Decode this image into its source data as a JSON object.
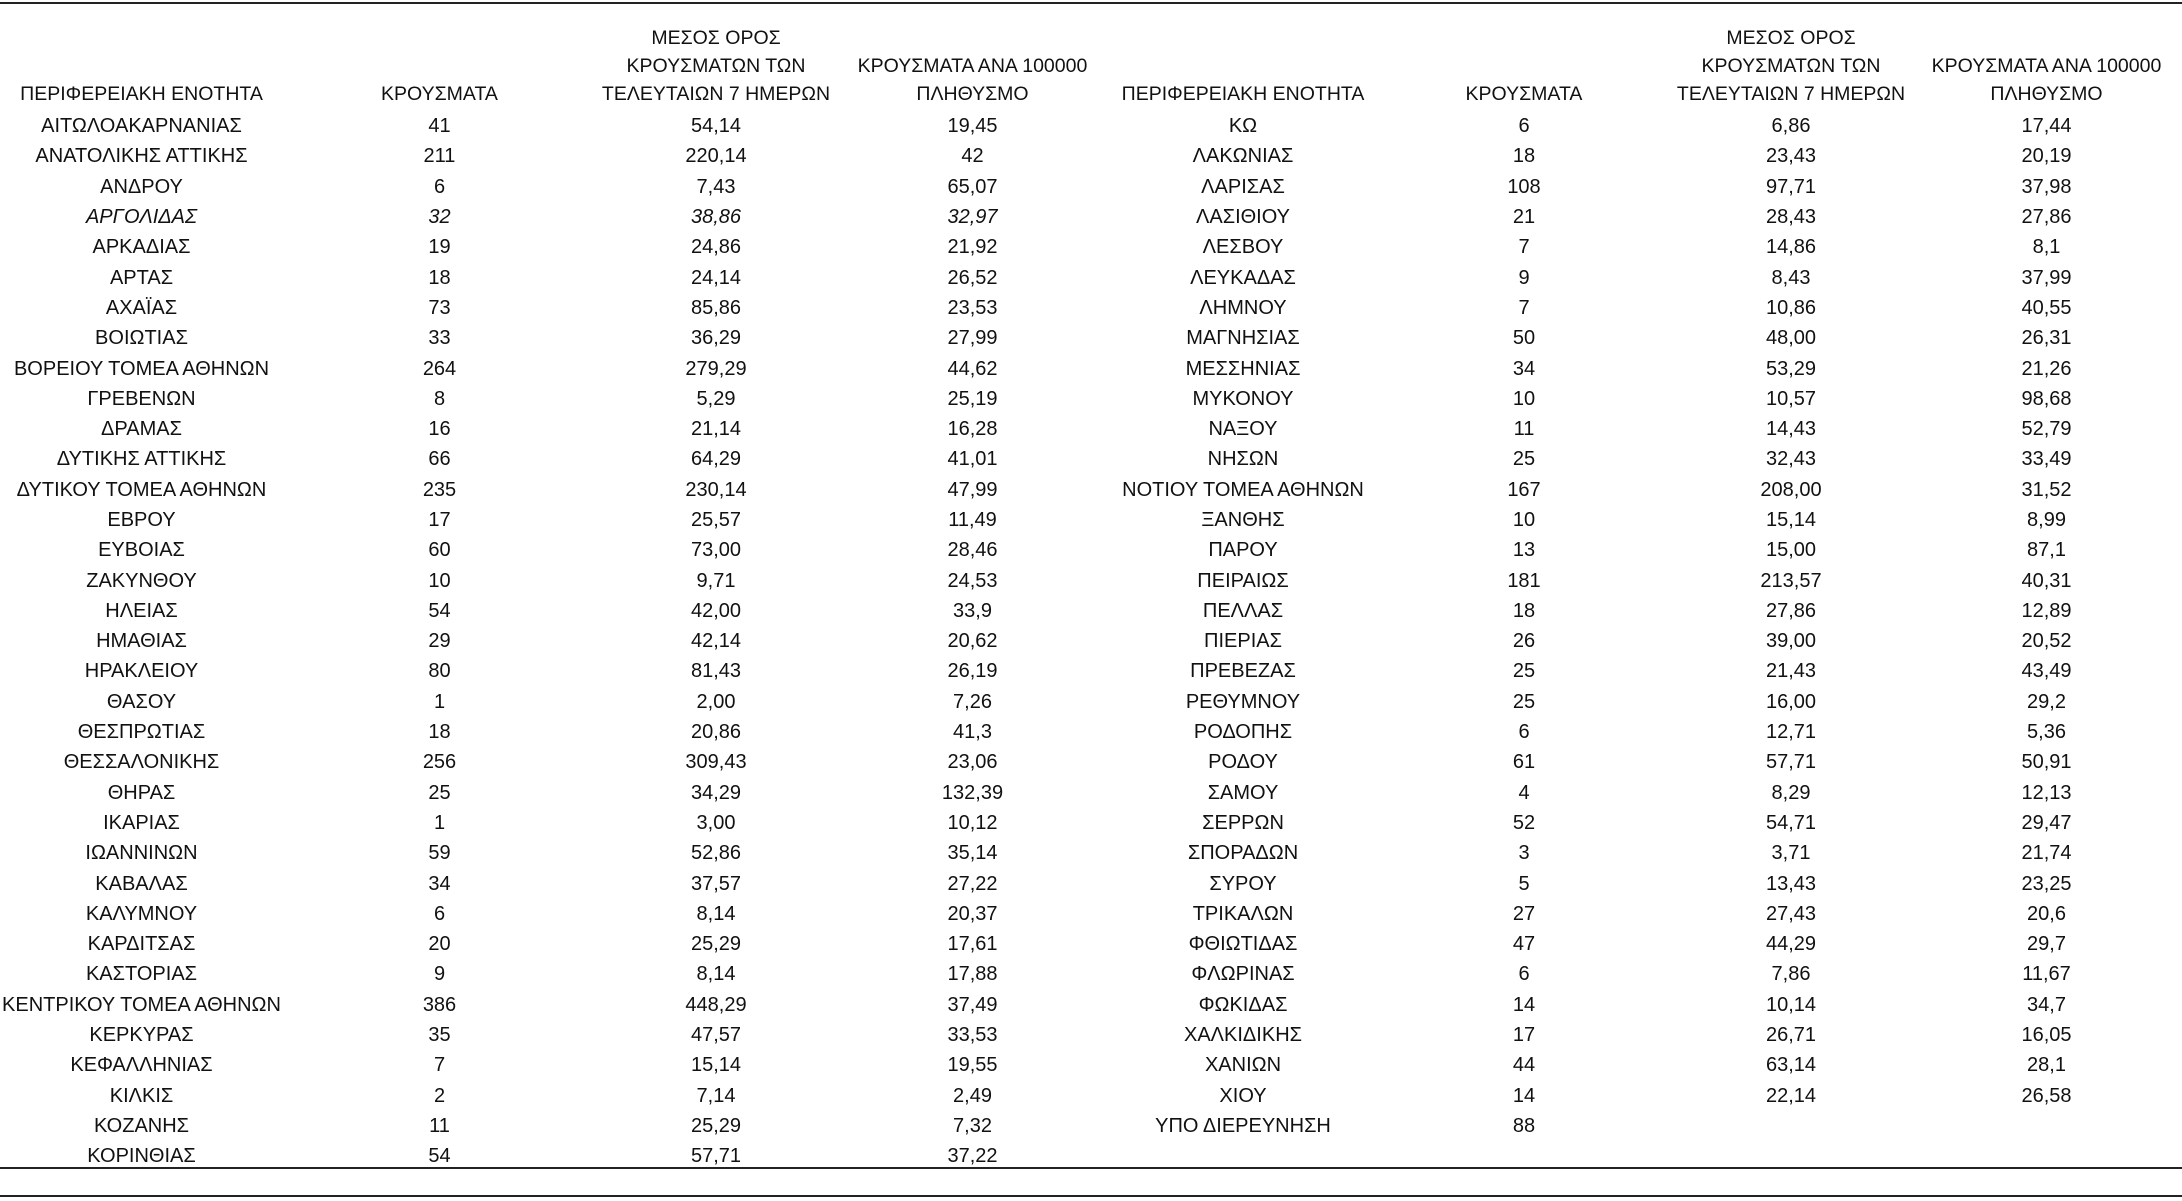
{
  "headers": [
    "ΠΕΡΙΦΕΡΕΙΑΚΗ ΕΝΟΤΗΤΑ",
    "ΚΡΟΥΣΜΑΤΑ",
    "ΜΕΣΟΣ ΟΡΟΣ ΚΡΟΥΣΜΑΤΩΝ ΤΩΝ ΤΕΛΕΥΤΑΙΩΝ 7 ΗΜΕΡΩΝ",
    "ΚΡΟΥΣΜΑΤΑ ΑΝΑ 100000 ΠΛΗΘΥΣΜΟ",
    "ΠΕΡΙΦΕΡΕΙΑΚΗ ΕΝΟΤΗΤΑ",
    "ΚΡΟΥΣΜΑΤΑ",
    "ΜΕΣΟΣ ΟΡΟΣ ΚΡΟΥΣΜΑΤΩΝ ΤΩΝ ΤΕΛΕΥΤΑΙΩΝ 7 ΗΜΕΡΩΝ",
    "ΚΡΟΥΣΜΑΤΑ ΑΝΑ 100000 ΠΛΗΘΥΣΜΟ"
  ],
  "header_lines": [
    [
      "ΠΕΡΙΦΕΡΕΙΑΚΗ ΕΝΟΤΗΤΑ"
    ],
    [
      "ΚΡΟΥΣΜΑΤΑ"
    ],
    [
      "ΜΕΣΟΣ ΟΡΟΣ",
      "ΚΡΟΥΣΜΑΤΩΝ ΤΩΝ",
      "ΤΕΛΕΥΤΑΙΩΝ 7 ΗΜΕΡΩΝ"
    ],
    [
      "ΚΡΟΥΣΜΑΤΑ ΑΝΑ 100000",
      "ΠΛΗΘΥΣΜΟ"
    ],
    [
      "ΠΕΡΙΦΕΡΕΙΑΚΗ ΕΝΟΤΗΤΑ"
    ],
    [
      "ΚΡΟΥΣΜΑΤΑ"
    ],
    [
      "ΜΕΣΟΣ ΟΡΟΣ",
      "ΚΡΟΥΣΜΑΤΩΝ ΤΩΝ",
      "ΤΕΛΕΥΤΑΙΩΝ 7 ΗΜΕΡΩΝ"
    ],
    [
      "ΚΡΟΥΣΜΑΤΑ ΑΝΑ 100000",
      "ΠΛΗΘΥΣΜΟ"
    ]
  ],
  "italic_row": 3,
  "rows": [
    [
      "ΑΙΤΩΛΟΑΚΑΡΝΑΝΙΑΣ",
      "41",
      "54,14",
      "19,45",
      "ΚΩ",
      "6",
      "6,86",
      "17,44"
    ],
    [
      "ΑΝΑΤΟΛΙΚΗΣ ΑΤΤΙΚΗΣ",
      "211",
      "220,14",
      "42",
      "ΛΑΚΩΝΙΑΣ",
      "18",
      "23,43",
      "20,19"
    ],
    [
      "ΑΝΔΡΟΥ",
      "6",
      "7,43",
      "65,07",
      "ΛΑΡΙΣΑΣ",
      "108",
      "97,71",
      "37,98"
    ],
    [
      "ΑΡΓΟΛΙΔΑΣ",
      "32",
      "38,86",
      "32,97",
      "ΛΑΣΙΘΙΟΥ",
      "21",
      "28,43",
      "27,86"
    ],
    [
      "ΑΡΚΑΔΙΑΣ",
      "19",
      "24,86",
      "21,92",
      "ΛΕΣΒΟΥ",
      "7",
      "14,86",
      "8,1"
    ],
    [
      "ΑΡΤΑΣ",
      "18",
      "24,14",
      "26,52",
      "ΛΕΥΚΑΔΑΣ",
      "9",
      "8,43",
      "37,99"
    ],
    [
      "ΑΧΑΪΑΣ",
      "73",
      "85,86",
      "23,53",
      "ΛΗΜΝΟΥ",
      "7",
      "10,86",
      "40,55"
    ],
    [
      "ΒΟΙΩΤΙΑΣ",
      "33",
      "36,29",
      "27,99",
      "ΜΑΓΝΗΣΙΑΣ",
      "50",
      "48,00",
      "26,31"
    ],
    [
      "ΒΟΡΕΙΟΥ ΤΟΜΕΑ ΑΘΗΝΩΝ",
      "264",
      "279,29",
      "44,62",
      "ΜΕΣΣΗΝΙΑΣ",
      "34",
      "53,29",
      "21,26"
    ],
    [
      "ΓΡΕΒΕΝΩΝ",
      "8",
      "5,29",
      "25,19",
      "ΜΥΚΟΝΟΥ",
      "10",
      "10,57",
      "98,68"
    ],
    [
      "ΔΡΑΜΑΣ",
      "16",
      "21,14",
      "16,28",
      "ΝΑΞΟΥ",
      "11",
      "14,43",
      "52,79"
    ],
    [
      "ΔΥΤΙΚΗΣ ΑΤΤΙΚΗΣ",
      "66",
      "64,29",
      "41,01",
      "ΝΗΣΩΝ",
      "25",
      "32,43",
      "33,49"
    ],
    [
      "ΔΥΤΙΚΟΥ ΤΟΜΕΑ ΑΘΗΝΩΝ",
      "235",
      "230,14",
      "47,99",
      "ΝΟΤΙΟΥ ΤΟΜΕΑ ΑΘΗΝΩΝ",
      "167",
      "208,00",
      "31,52"
    ],
    [
      "ΕΒΡΟΥ",
      "17",
      "25,57",
      "11,49",
      "ΞΑΝΘΗΣ",
      "10",
      "15,14",
      "8,99"
    ],
    [
      "ΕΥΒΟΙΑΣ",
      "60",
      "73,00",
      "28,46",
      "ΠΑΡΟΥ",
      "13",
      "15,00",
      "87,1"
    ],
    [
      "ΖΑΚΥΝΘΟΥ",
      "10",
      "9,71",
      "24,53",
      "ΠΕΙΡΑΙΩΣ",
      "181",
      "213,57",
      "40,31"
    ],
    [
      "ΗΛΕΙΑΣ",
      "54",
      "42,00",
      "33,9",
      "ΠΕΛΛΑΣ",
      "18",
      "27,86",
      "12,89"
    ],
    [
      "ΗΜΑΘΙΑΣ",
      "29",
      "42,14",
      "20,62",
      "ΠΙΕΡΙΑΣ",
      "26",
      "39,00",
      "20,52"
    ],
    [
      "ΗΡΑΚΛΕΙΟΥ",
      "80",
      "81,43",
      "26,19",
      "ΠΡΕΒΕΖΑΣ",
      "25",
      "21,43",
      "43,49"
    ],
    [
      "ΘΑΣΟΥ",
      "1",
      "2,00",
      "7,26",
      "ΡΕΘΥΜΝΟΥ",
      "25",
      "16,00",
      "29,2"
    ],
    [
      "ΘΕΣΠΡΩΤΙΑΣ",
      "18",
      "20,86",
      "41,3",
      "ΡΟΔΟΠΗΣ",
      "6",
      "12,71",
      "5,36"
    ],
    [
      "ΘΕΣΣΑΛΟΝΙΚΗΣ",
      "256",
      "309,43",
      "23,06",
      "ΡΟΔΟΥ",
      "61",
      "57,71",
      "50,91"
    ],
    [
      "ΘΗΡΑΣ",
      "25",
      "34,29",
      "132,39",
      "ΣΑΜΟΥ",
      "4",
      "8,29",
      "12,13"
    ],
    [
      "ΙΚΑΡΙΑΣ",
      "1",
      "3,00",
      "10,12",
      "ΣΕΡΡΩΝ",
      "52",
      "54,71",
      "29,47"
    ],
    [
      "ΙΩΑΝΝΙΝΩΝ",
      "59",
      "52,86",
      "35,14",
      "ΣΠΟΡΑΔΩΝ",
      "3",
      "3,71",
      "21,74"
    ],
    [
      "ΚΑΒΑΛΑΣ",
      "34",
      "37,57",
      "27,22",
      "ΣΥΡΟΥ",
      "5",
      "13,43",
      "23,25"
    ],
    [
      "ΚΑΛΥΜΝΟΥ",
      "6",
      "8,14",
      "20,37",
      "ΤΡΙΚΑΛΩΝ",
      "27",
      "27,43",
      "20,6"
    ],
    [
      "ΚΑΡΔΙΤΣΑΣ",
      "20",
      "25,29",
      "17,61",
      "ΦΘΙΩΤΙΔΑΣ",
      "47",
      "44,29",
      "29,7"
    ],
    [
      "ΚΑΣΤΟΡΙΑΣ",
      "9",
      "8,14",
      "17,88",
      "ΦΛΩΡΙΝΑΣ",
      "6",
      "7,86",
      "11,67"
    ],
    [
      "ΚΕΝΤΡΙΚΟΥ ΤΟΜΕΑ ΑΘΗΝΩΝ",
      "386",
      "448,29",
      "37,49",
      "ΦΩΚΙΔΑΣ",
      "14",
      "10,14",
      "34,7"
    ],
    [
      "ΚΕΡΚΥΡΑΣ",
      "35",
      "47,57",
      "33,53",
      "ΧΑΛΚΙΔΙΚΗΣ",
      "17",
      "26,71",
      "16,05"
    ],
    [
      "ΚΕΦΑΛΛΗΝΙΑΣ",
      "7",
      "15,14",
      "19,55",
      "ΧΑΝΙΩΝ",
      "44",
      "63,14",
      "28,1"
    ],
    [
      "ΚΙΛΚΙΣ",
      "2",
      "7,14",
      "2,49",
      "ΧΙΟΥ",
      "14",
      "22,14",
      "26,58"
    ],
    [
      "ΚΟΖΑΝΗΣ",
      "11",
      "25,29",
      "7,32",
      "ΥΠΟ ΔΙΕΡΕΥΝΗΣΗ",
      "88",
      "",
      ""
    ],
    [
      "ΚΟΡΙΝΘΙΑΣ",
      "54",
      "57,71",
      "37,22",
      "",
      "",
      "",
      ""
    ]
  ]
}
